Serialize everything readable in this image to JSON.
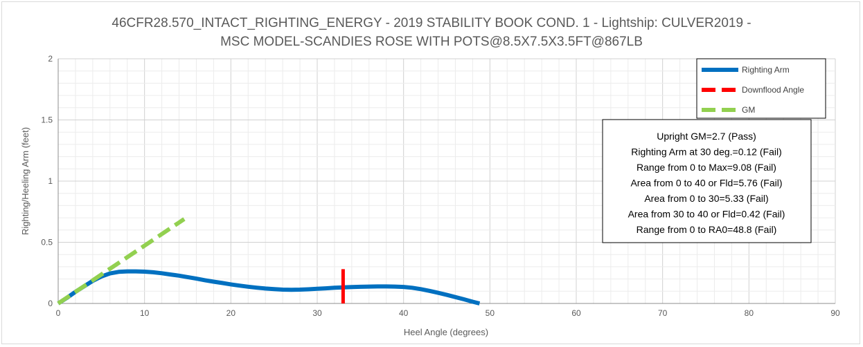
{
  "chart_data": {
    "type": "line",
    "title_lines": [
      "46CFR28.570_INTACT_RIGHTING_ENERGY - 2019 STABILITY BOOK COND. 1 - Lightship: CULVER2019 -",
      "MSC MODEL-SCANDIES ROSE WITH POTS@8.5X7.5X3.5FT@867LB"
    ],
    "xlabel": "Heel Angle (degrees)",
    "ylabel": "Righting/Heeling Arm (feet)",
    "xlim": [
      0,
      90
    ],
    "ylim": [
      0,
      2
    ],
    "x_ticks": [
      0,
      10,
      20,
      30,
      40,
      50,
      60,
      70,
      80,
      90
    ],
    "y_ticks": [
      0,
      0.5,
      1,
      1.5,
      2
    ],
    "y_tick_labels": [
      "0",
      "0.5",
      "1",
      "1.5",
      "2"
    ],
    "grid": true,
    "legend_position": "top-right",
    "series": [
      {
        "name": "Righting Arm",
        "color": "#0070C0",
        "style": "solid",
        "x": [
          0,
          1,
          2,
          3,
          4,
          5,
          6,
          7,
          8,
          9,
          10,
          11,
          12,
          13,
          14,
          15,
          16,
          17,
          18,
          19,
          20,
          21,
          22,
          23,
          24,
          25,
          26,
          27,
          28,
          29,
          30,
          31,
          32,
          33,
          34,
          35,
          36,
          37,
          38,
          39,
          40,
          41,
          42,
          43,
          44,
          45,
          46,
          47,
          48,
          48.8
        ],
        "y": [
          0,
          0.045,
          0.095,
          0.14,
          0.185,
          0.22,
          0.245,
          0.258,
          0.262,
          0.262,
          0.26,
          0.255,
          0.247,
          0.237,
          0.227,
          0.215,
          0.203,
          0.19,
          0.178,
          0.167,
          0.156,
          0.146,
          0.137,
          0.129,
          0.122,
          0.117,
          0.113,
          0.112,
          0.113,
          0.116,
          0.12,
          0.124,
          0.128,
          0.131,
          0.134,
          0.136,
          0.138,
          0.139,
          0.139,
          0.138,
          0.135,
          0.128,
          0.117,
          0.103,
          0.087,
          0.07,
          0.052,
          0.034,
          0.014,
          0
        ]
      },
      {
        "name": "Downflood Angle",
        "color": "#FF0000",
        "style": "dashed",
        "x": [
          33,
          33
        ],
        "y": [
          0,
          0.28
        ]
      },
      {
        "name": "GM",
        "color": "#92D050",
        "style": "dashed",
        "x": [
          0,
          14.6
        ],
        "y": [
          0,
          0.69
        ]
      }
    ],
    "annotation_box": [
      "Upright GM=2.7 (Pass)",
      "Righting Arm at 30 deg.=0.12 (Fail)",
      "Range from 0 to Max=9.08 (Fail)",
      "Area from 0 to 40 or Fld=5.76 (Fail)",
      "Area from 0 to 30=5.33 (Fail)",
      "Area from 30 to 40 or Fld=0.42 (Fail)",
      "Range from 0 to RA0=48.8 (Fail)"
    ]
  }
}
